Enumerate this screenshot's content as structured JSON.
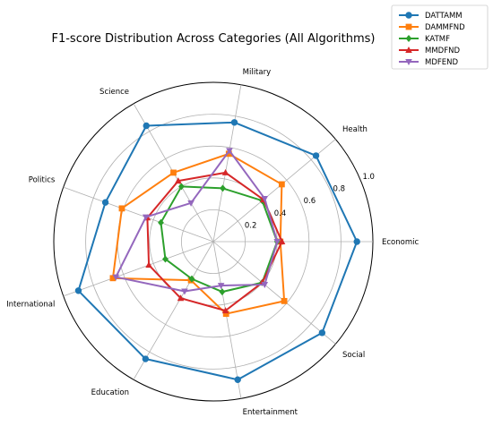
{
  "chart_data": {
    "type": "radar",
    "title": "F1-score Distribution Across Categories (All Algorithms)",
    "categories": [
      "Economic",
      "Health",
      "Military",
      "Science",
      "Politics",
      "International",
      "Education",
      "Entertainment",
      "Social"
    ],
    "rlim": [
      0,
      1.0
    ],
    "rticks": [
      "0.2",
      "0.4",
      "0.6",
      "0.8",
      "1.0"
    ],
    "rtick_values": [
      0.2,
      0.4,
      0.6,
      0.8,
      1.0
    ],
    "grid": true,
    "legend_position": "top-right",
    "series": [
      {
        "name": "DATTAMM",
        "color": "#1f77b4",
        "marker": "circle",
        "values": [
          0.9,
          0.84,
          0.76,
          0.84,
          0.72,
          0.9,
          0.85,
          0.88,
          0.89
        ]
      },
      {
        "name": "DAMMFND",
        "color": "#ff7f0e",
        "marker": "square",
        "values": [
          0.42,
          0.56,
          0.56,
          0.5,
          0.61,
          0.67,
          0.28,
          0.46,
          0.58
        ]
      },
      {
        "name": "KATMF",
        "color": "#2ca02c",
        "marker": "diamond",
        "values": [
          0.4,
          0.4,
          0.34,
          0.4,
          0.35,
          0.32,
          0.27,
          0.32,
          0.4
        ]
      },
      {
        "name": "MMDFND",
        "color": "#d62728",
        "marker": "triangle-up",
        "values": [
          0.43,
          0.41,
          0.44,
          0.44,
          0.44,
          0.43,
          0.41,
          0.44,
          0.4
        ]
      },
      {
        "name": "MDFEND",
        "color": "#9467bd",
        "marker": "triangle-down",
        "values": [
          0.4,
          0.42,
          0.58,
          0.28,
          0.45,
          0.65,
          0.36,
          0.28,
          0.42
        ]
      }
    ]
  }
}
